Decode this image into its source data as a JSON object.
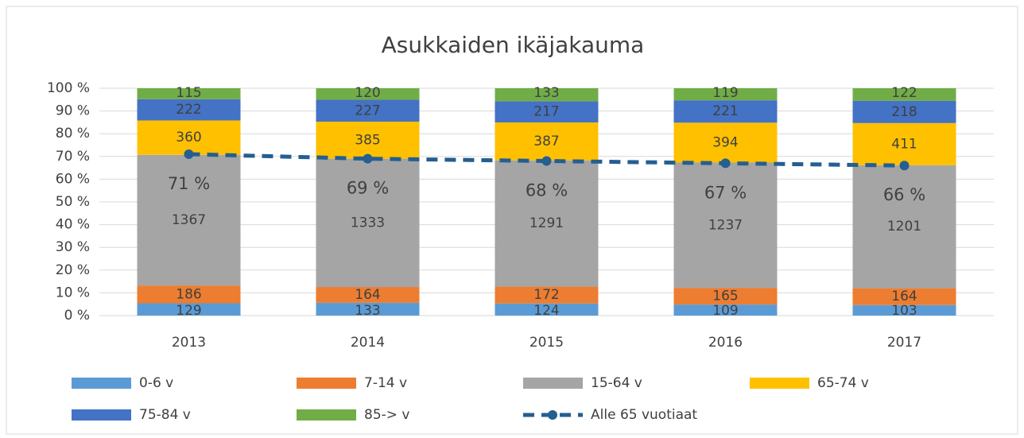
{
  "chart_data": {
    "type": "bar",
    "stacked": "percent",
    "title": "Asukkaiden ikäjakauma",
    "categories": [
      "2013",
      "2014",
      "2015",
      "2016",
      "2017"
    ],
    "series": [
      {
        "name": "0-6 v",
        "color": "#5b9bd5",
        "values": [
          129,
          133,
          124,
          109,
          103
        ]
      },
      {
        "name": "7-14 v",
        "color": "#ed7d31",
        "values": [
          186,
          164,
          172,
          165,
          164
        ]
      },
      {
        "name": "15-64 v",
        "color": "#a5a5a5",
        "values": [
          1367,
          1333,
          1291,
          1237,
          1201
        ]
      },
      {
        "name": "65-74 v",
        "color": "#ffc000",
        "values": [
          360,
          385,
          387,
          394,
          411
        ]
      },
      {
        "name": "75-84 v",
        "color": "#4472c4",
        "values": [
          222,
          227,
          217,
          221,
          218
        ]
      },
      {
        "name": "85-> v",
        "color": "#70ad47",
        "values": [
          115,
          120,
          133,
          119,
          122
        ]
      },
      {
        "name": "Alle 65 vuotiaat",
        "type": "line",
        "color": "#255e91",
        "values": [
          71,
          69,
          68,
          67,
          66
        ],
        "value_labels": [
          "71 %",
          "69 %",
          "68 %",
          "67 %",
          "66 %"
        ]
      }
    ],
    "ylim": [
      0,
      100
    ],
    "yticks": [
      {
        "value": 0,
        "label": "0 %"
      },
      {
        "value": 10,
        "label": "10 %"
      },
      {
        "value": 20,
        "label": "20 %"
      },
      {
        "value": 30,
        "label": "30 %"
      },
      {
        "value": 40,
        "label": "40 %"
      },
      {
        "value": 50,
        "label": "50 %"
      },
      {
        "value": 60,
        "label": "60 %"
      },
      {
        "value": 70,
        "label": "70 %"
      },
      {
        "value": 80,
        "label": "80 %"
      },
      {
        "value": 90,
        "label": "90 %"
      },
      {
        "value": 100,
        "label": "100 %"
      }
    ],
    "grid": true,
    "legend": "bottom"
  }
}
